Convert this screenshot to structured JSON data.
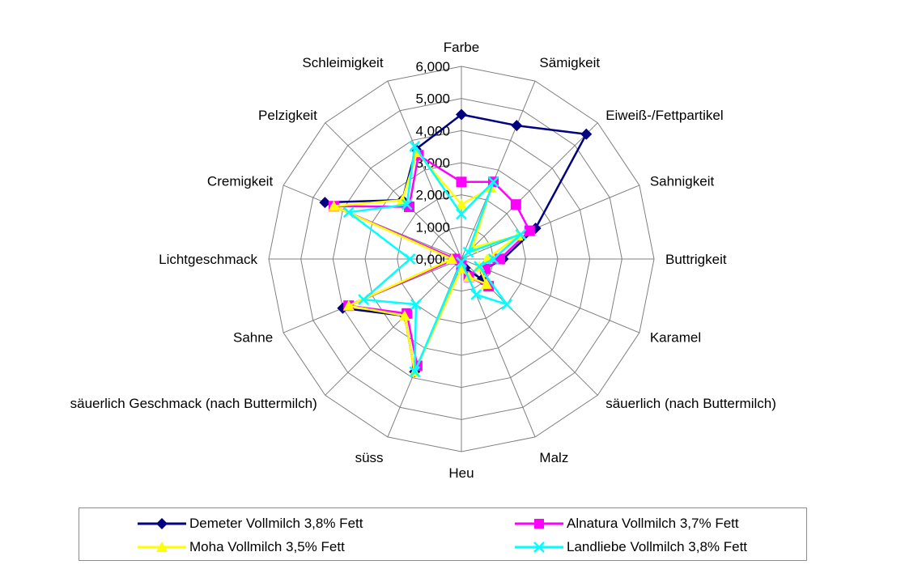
{
  "chart_data": {
    "type": "radar",
    "title": "",
    "axes": [
      "Farbe",
      "Sämigkeit",
      "Eiweiß-/Fettpartikel",
      "Sahnigkeit",
      "Buttrigkeit",
      "Karamel",
      "säuerlich (nach Buttermilch)",
      "Malz",
      "Heu",
      "süss",
      "säuerlich Geschmack (nach Buttermilch)",
      "Sahne",
      "Lichtgeschmack",
      "Cremigkeit",
      "Pelzigkeit",
      "Schleimigkeit"
    ],
    "ticks": [
      "0,000",
      "1,000",
      "2,000",
      "3,000",
      "4,000",
      "5,000",
      "6,000"
    ],
    "rmax": 6,
    "grid": true,
    "legend_position": "bottom",
    "series": [
      {
        "name": "Demeter Vollmilch 3,8% Fett",
        "color": "#000080",
        "marker": "diamond",
        "values": [
          4.5,
          4.5,
          5.5,
          2.5,
          1.3,
          0.8,
          0.9,
          0.3,
          0.2,
          3.8,
          2.5,
          4.0,
          0.2,
          4.6,
          2.6,
          3.7
        ]
      },
      {
        "name": "Alnatura Vollmilch 3,7% Fett",
        "color": "#ff00ff",
        "marker": "square",
        "values": [
          2.4,
          2.6,
          2.4,
          2.3,
          1.2,
          0.8,
          1.2,
          0.6,
          0.2,
          3.6,
          2.4,
          3.8,
          0.2,
          4.3,
          2.3,
          3.5
        ]
      },
      {
        "name": "Moha Vollmilch 3,5% Fett",
        "color": "#ffff00",
        "marker": "triangle",
        "values": [
          1.7,
          2.4,
          0.5,
          1.9,
          0.8,
          0.6,
          1.1,
          0.6,
          0.3,
          3.8,
          2.5,
          3.8,
          0.3,
          4.3,
          2.6,
          3.6
        ]
      },
      {
        "name": "Landliebe Vollmilch 3,8% Fett",
        "color": "#00ffff",
        "marker": "x",
        "values": [
          1.4,
          2.6,
          0.3,
          2.0,
          1.0,
          0.6,
          2.0,
          1.2,
          0.1,
          3.8,
          2.0,
          3.3,
          1.6,
          3.8,
          2.4,
          3.8
        ]
      }
    ]
  }
}
